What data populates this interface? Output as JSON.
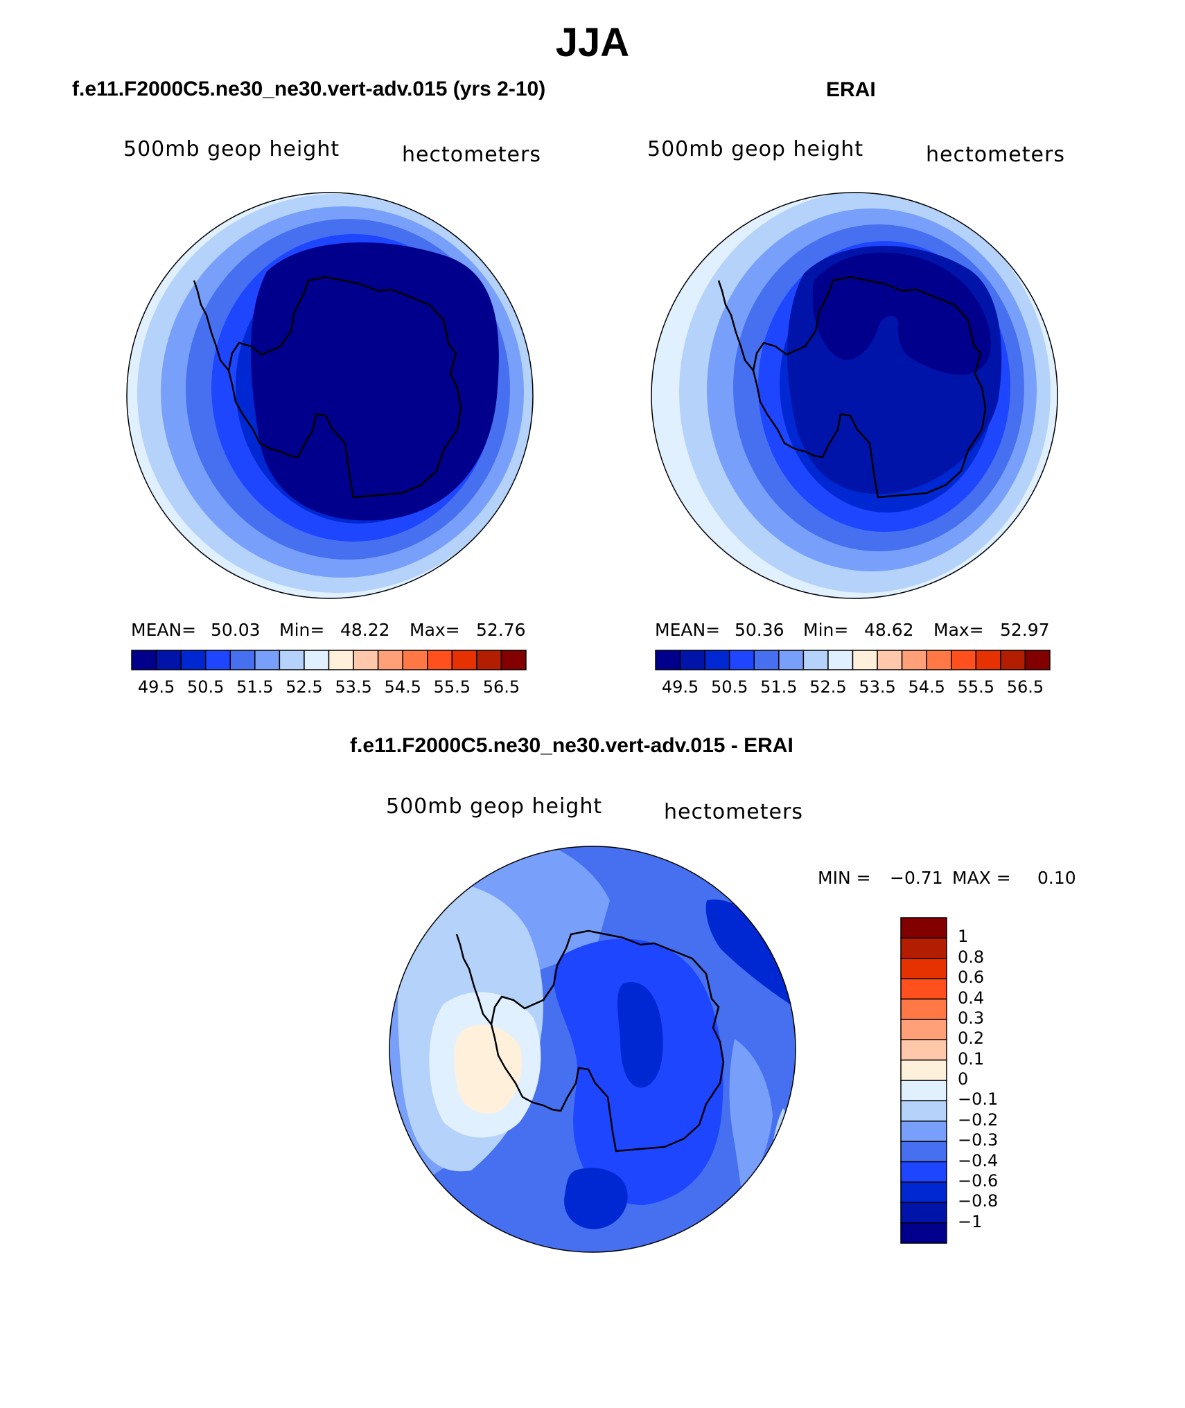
{
  "figure": {
    "title": "JJA"
  },
  "colors": {
    "seq16": [
      "#00008c",
      "#0014aa",
      "#0028d2",
      "#1e46ff",
      "#4670f0",
      "#78a0fa",
      "#b4d2fa",
      "#e1f0ff",
      "#fff0dc",
      "#ffc8aa",
      "#ffa078",
      "#ff7846",
      "#ff501e",
      "#e63200",
      "#b41e00",
      "#820000"
    ],
    "diff18": [
      "#00008c",
      "#0014aa",
      "#0028d2",
      "#1e46ff",
      "#4670f0",
      "#78a0fa",
      "#b4d2fa",
      "#e1f0ff",
      "#fff0dc",
      "#ffc8aa",
      "#ffa078",
      "#ff7846",
      "#ff501e",
      "#e63200",
      "#b41e00",
      "#820000"
    ],
    "coast": "#000000"
  },
  "panels": [
    {
      "title": "f.e11.F2000C5.ne30_ne30.vert-adv.015 (yrs 2-10)",
      "left_label": "500mb geop height",
      "right_label": "hectometers",
      "stats": {
        "mean_label": "MEAN=",
        "mean": "50.03",
        "min_label": "Min=",
        "min": "48.22",
        "max_label": "Max=",
        "max": "52.76"
      },
      "colorbar_ticks": [
        "49.5",
        "50.5",
        "51.5",
        "52.5",
        "53.5",
        "54.5",
        "55.5",
        "56.5"
      ]
    },
    {
      "title": "ERAI",
      "left_label": "500mb geop height",
      "right_label": "hectometers",
      "stats": {
        "mean_label": "MEAN=",
        "mean": "50.36",
        "min_label": "Min=",
        "min": "48.62",
        "max_label": "Max=",
        "max": "52.97"
      },
      "colorbar_ticks": [
        "49.5",
        "50.5",
        "51.5",
        "52.5",
        "53.5",
        "54.5",
        "55.5",
        "56.5"
      ]
    },
    {
      "title": "f.e11.F2000C5.ne30_ne30.vert-adv.015 - ERAI",
      "left_label": "500mb geop height",
      "right_label": "hectometers",
      "stats": {
        "min_label": "MIN =",
        "min": "−0.71",
        "max_label": "MAX =",
        "max": "0.10"
      },
      "colorbar_ticks": [
        "1",
        "0.8",
        "0.6",
        "0.4",
        "0.3",
        "0.2",
        "0.1",
        "0",
        "−0.1",
        "−0.2",
        "−0.3",
        "−0.4",
        "−0.6",
        "−0.8",
        "−1"
      ]
    }
  ]
}
